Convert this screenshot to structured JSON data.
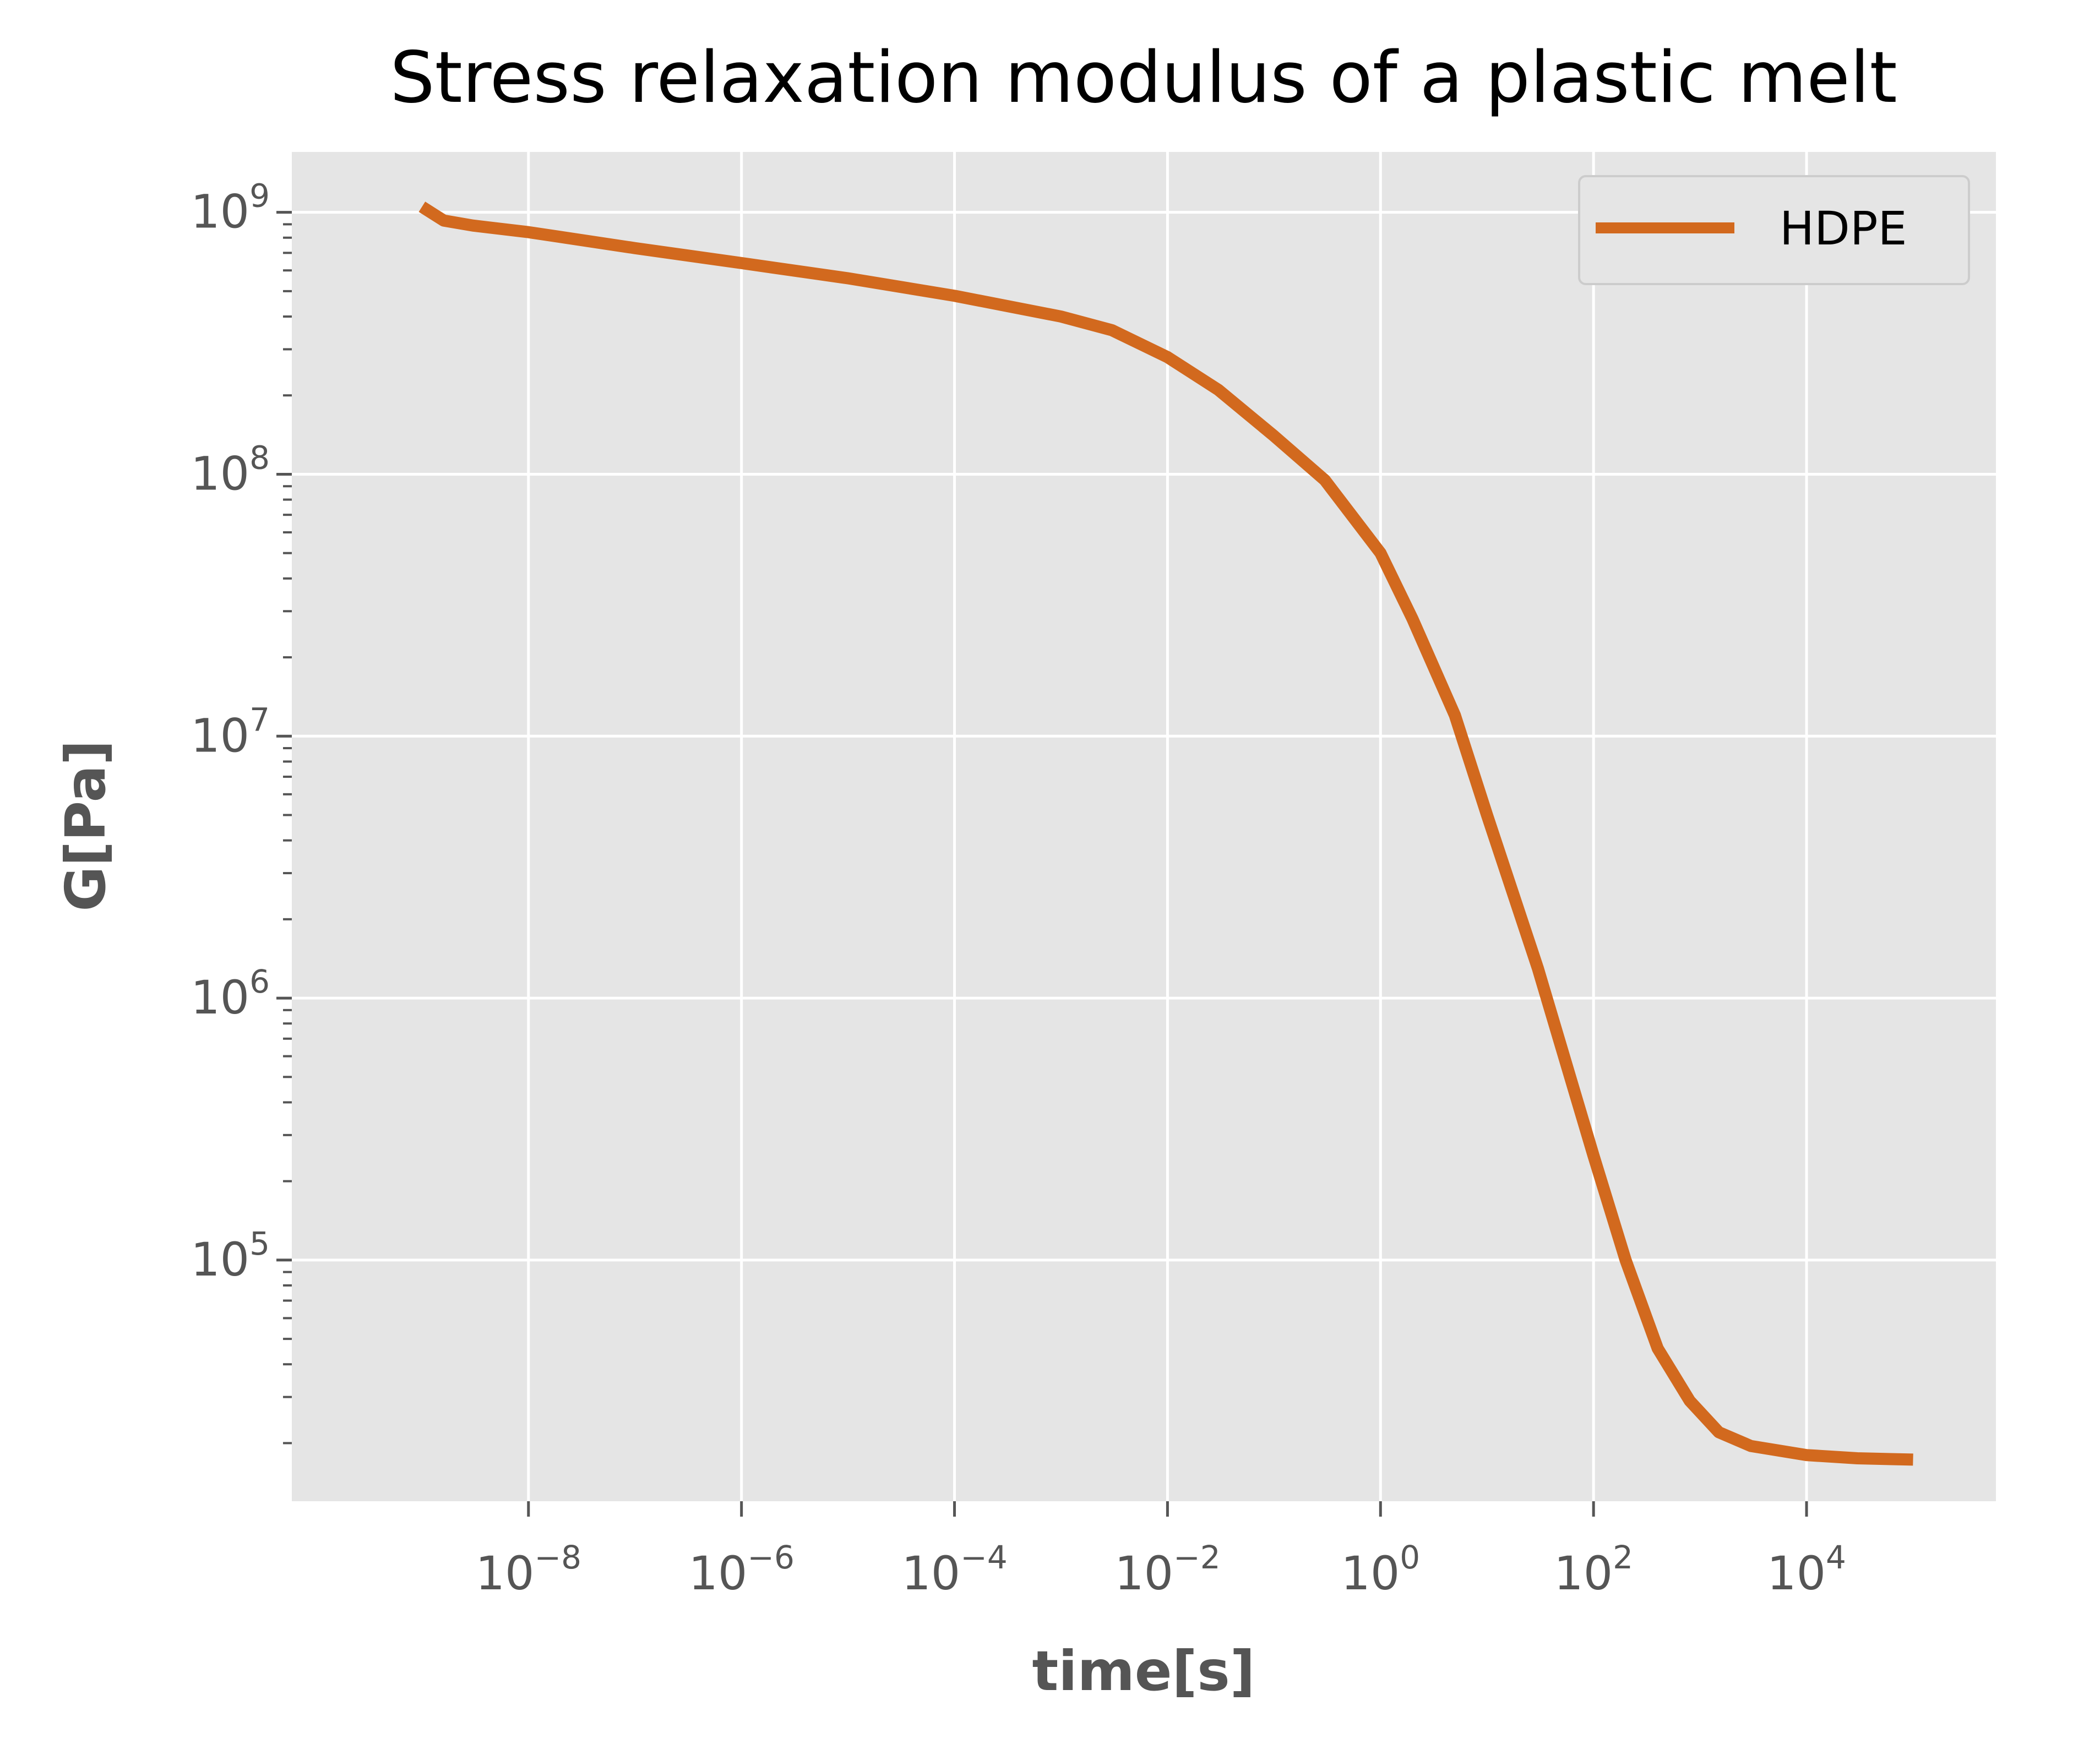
{
  "chart_data": {
    "type": "line",
    "title": "Stress relaxation modulus of a plastic melt",
    "xlabel": "time[s]",
    "ylabel": "G[Pa]",
    "x_scale": "log",
    "y_scale": "log",
    "xlim": [
      6e-11,
      600000.0
    ],
    "ylim": [
      12000.0,
      1700000000.0
    ],
    "grid": true,
    "legend_position": "top-right",
    "x_tick_labels": [
      {
        "base": "10",
        "exp": "−8",
        "value": 1e-08
      },
      {
        "base": "10",
        "exp": "−6",
        "value": 1e-06
      },
      {
        "base": "10",
        "exp": "−4",
        "value": 0.0001
      },
      {
        "base": "10",
        "exp": "−2",
        "value": 0.01
      },
      {
        "base": "10",
        "exp": "0",
        "value": 1
      },
      {
        "base": "10",
        "exp": "2",
        "value": 100.0
      },
      {
        "base": "10",
        "exp": "4",
        "value": 10000.0
      }
    ],
    "y_tick_labels": [
      {
        "base": "10",
        "exp": "9",
        "value": 1000000000.0
      },
      {
        "base": "10",
        "exp": "8",
        "value": 100000000.0
      },
      {
        "base": "10",
        "exp": "7",
        "value": 10000000.0
      },
      {
        "base": "10",
        "exp": "6",
        "value": 1000000.0
      },
      {
        "base": "10",
        "exp": "5",
        "value": 100000.0
      }
    ],
    "series": [
      {
        "name": "HDPE",
        "color": "#D2691E",
        "points": [
          [
            1e-09,
            1050000000.0
          ],
          [
            1.6e-09,
            930000000.0
          ],
          [
            3e-09,
            890000000.0
          ],
          [
            1e-08,
            840000000.0
          ],
          [
            1e-07,
            730000000.0
          ],
          [
            1e-06,
            640000000.0
          ],
          [
            1e-05,
            560000000.0
          ],
          [
            0.0001,
            480000000.0
          ],
          [
            0.001,
            400000000.0
          ],
          [
            0.003,
            355000000.0
          ],
          [
            0.01,
            280000000.0
          ],
          [
            0.03,
            210000000.0
          ],
          [
            0.1,
            140000000.0
          ],
          [
            0.3,
            95000000.0
          ],
          [
            1,
            50000000.0
          ],
          [
            2,
            28000000.0
          ],
          [
            5,
            12000000.0
          ],
          [
            10,
            5000000.0
          ],
          [
            30,
            1300000.0
          ],
          [
            100,
            250000.0
          ],
          [
            200,
            100000.0
          ],
          [
            400,
            46000.0
          ],
          [
            800,
            29000.0
          ],
          [
            1500,
            22000.0
          ],
          [
            3000,
            19500.0
          ],
          [
            10000.0,
            18000.0
          ],
          [
            30000.0,
            17500.0
          ],
          [
            100000.0,
            17300.0
          ]
        ]
      }
    ]
  }
}
